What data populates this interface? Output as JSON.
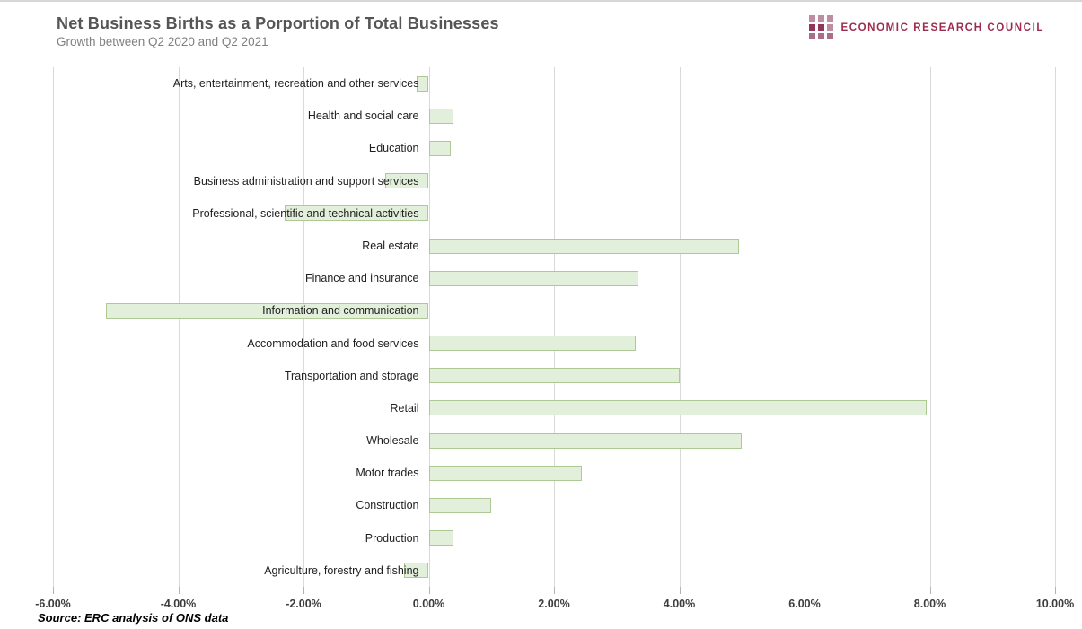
{
  "header": {
    "title": "Net Business Births as a Porportion of Total Businesses",
    "subtitle": "Growth between Q2 2020 and Q2 2021"
  },
  "logo": {
    "text": "ECONOMIC RESEARCH COUNCIL",
    "text_color": "#9b2c4e",
    "square_colors": [
      "#bd8da2",
      "#bd8da2",
      "#bd8da2",
      "#94355a",
      "#94355a",
      "#bd8da2",
      "#ab6d8a",
      "#ab6d8a",
      "#ab6d8a"
    ]
  },
  "source_note": "Source: ERC analysis of ONS data",
  "chart_data": {
    "type": "bar",
    "orientation": "horizontal",
    "title": "Net Business Births as a Porportion of Total Businesses",
    "subtitle": "Growth between Q2 2020 and Q2 2021",
    "source": "Source: ERC analysis of ONS data",
    "categories": [
      "Arts, entertainment, recreation and other services",
      "Health and social care",
      "Education",
      "Business administration and support services",
      "Professional, scientific and technical activities",
      "Real estate",
      "Finance and insurance",
      "Information and communication",
      "Accommodation and food services",
      "Transportation and storage",
      "Retail",
      "Wholesale",
      "Motor trades",
      "Construction",
      "Production",
      "Agriculture, forestry and fishing"
    ],
    "values": [
      -0.2,
      0.4,
      0.35,
      -0.7,
      -2.3,
      4.95,
      3.35,
      -5.15,
      3.3,
      4.0,
      7.95,
      5.0,
      2.45,
      1.0,
      0.4,
      -0.4
    ],
    "value_unit": "percent",
    "xlim": [
      -6,
      10
    ],
    "x_tick_values": [
      -6,
      -4,
      -2,
      0,
      2,
      4,
      6,
      8,
      10
    ],
    "x_tick_labels": [
      "-6.00%",
      "-4.00%",
      "-2.00%",
      "0.00%",
      "2.00%",
      "4.00%",
      "6.00%",
      "8.00%",
      "10.00%"
    ],
    "grid": true,
    "legend": false,
    "bar_fill": "#e2efda",
    "bar_border": "#aec896",
    "gridline_color": "#d9d9d9"
  }
}
